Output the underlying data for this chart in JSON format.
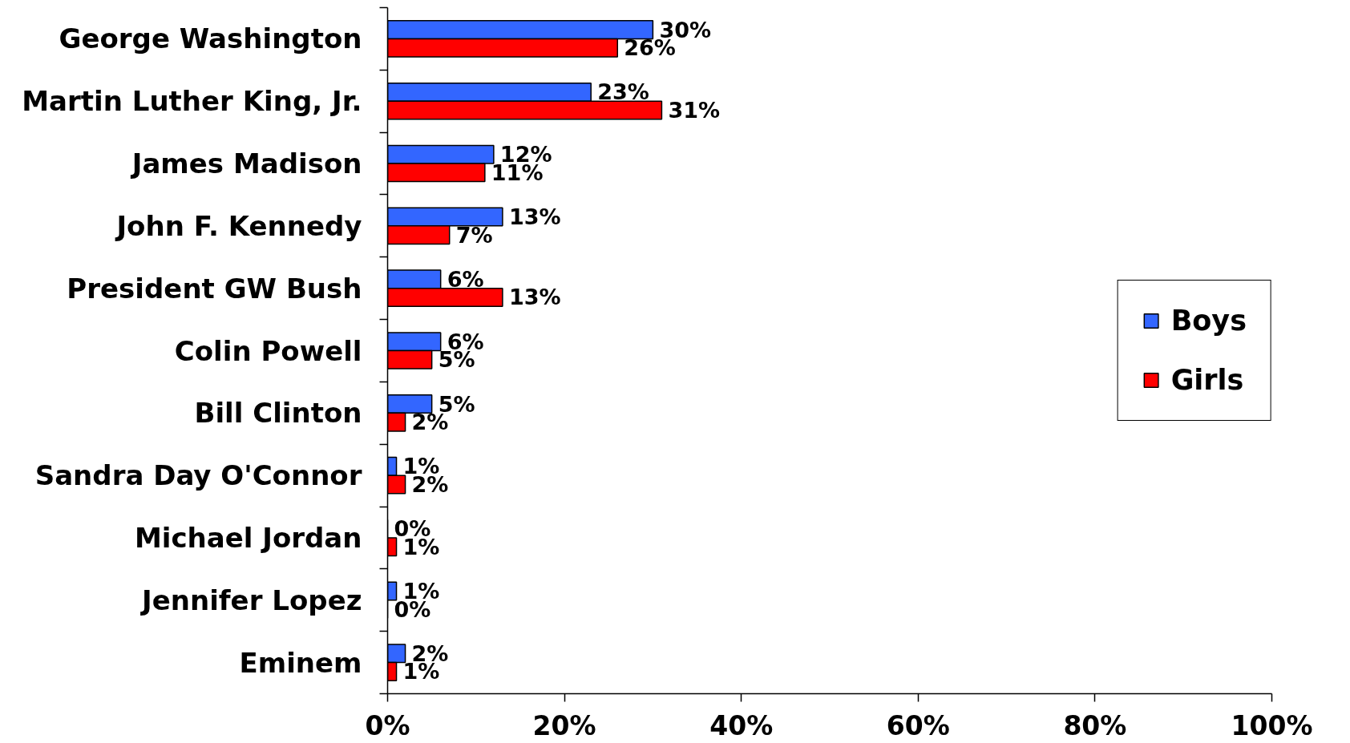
{
  "chart_data": {
    "type": "bar",
    "orientation": "horizontal",
    "categories": [
      "George Washington",
      "Martin Luther King, Jr.",
      "James Madison",
      "John F. Kennedy",
      "President GW Bush",
      "Colin Powell",
      "Bill Clinton",
      "Sandra Day O'Connor",
      "Michael Jordan",
      "Jennifer Lopez",
      "Eminem"
    ],
    "series": [
      {
        "name": "Boys",
        "color": "#3366ff",
        "values": [
          30,
          23,
          12,
          13,
          6,
          6,
          5,
          1,
          0,
          1,
          2
        ],
        "value_labels": [
          "30%",
          "23%",
          "12%",
          "13%",
          "6%",
          "6%",
          "5%",
          "1%",
          "0%",
          "1%",
          "2%"
        ]
      },
      {
        "name": "Girls",
        "color": "#ff0000",
        "values": [
          26,
          31,
          11,
          7,
          13,
          5,
          2,
          2,
          1,
          0,
          1
        ],
        "value_labels": [
          "26%",
          "31%",
          "11%",
          "7%",
          "13%",
          "5%",
          "2%",
          "2%",
          "1%",
          "0%",
          "1%"
        ]
      }
    ],
    "xlim": [
      0,
      100
    ],
    "xticks": [
      {
        "value": 0,
        "label": "0%"
      },
      {
        "value": 20,
        "label": "20%"
      },
      {
        "value": 40,
        "label": "40%"
      },
      {
        "value": 60,
        "label": "60%"
      },
      {
        "value": 80,
        "label": "80%"
      },
      {
        "value": 100,
        "label": "100%"
      }
    ],
    "grid": false,
    "legend": "right"
  }
}
